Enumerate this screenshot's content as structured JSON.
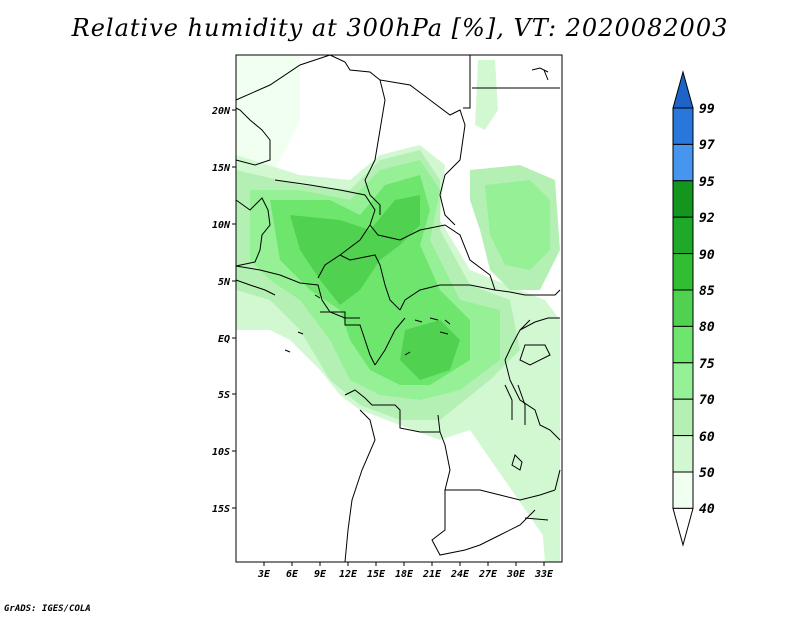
{
  "title": "Relative humidity at 300hPa [%], VT: 2020082003",
  "credit": "GrADS: IGES/COLA",
  "map": {
    "lon_labels": [
      "3E",
      "6E",
      "9E",
      "12E",
      "15E",
      "18E",
      "21E",
      "24E",
      "27E",
      "30E",
      "33E"
    ],
    "lat_labels": [
      "20N",
      "15N",
      "10N",
      "5N",
      "EQ",
      "5S",
      "10S",
      "15S"
    ]
  },
  "colorbar": {
    "levels": [
      "99",
      "97",
      "95",
      "92",
      "90",
      "85",
      "80",
      "75",
      "70",
      "60",
      "50",
      "40"
    ],
    "colors": {
      "above_99": "#1e64c8",
      "97_99": "#2878dc",
      "95_97": "#4696f0",
      "92_95": "#14961e",
      "90_92": "#1eaa28",
      "85_90": "#32be32",
      "80_85": "#50d250",
      "75_80": "#6ee66e",
      "70_75": "#96f096",
      "60_70": "#b4f0b4",
      "50_60": "#d2f8d2",
      "40_50": "#f0fff0",
      "below_40": "#ffffff"
    }
  }
}
